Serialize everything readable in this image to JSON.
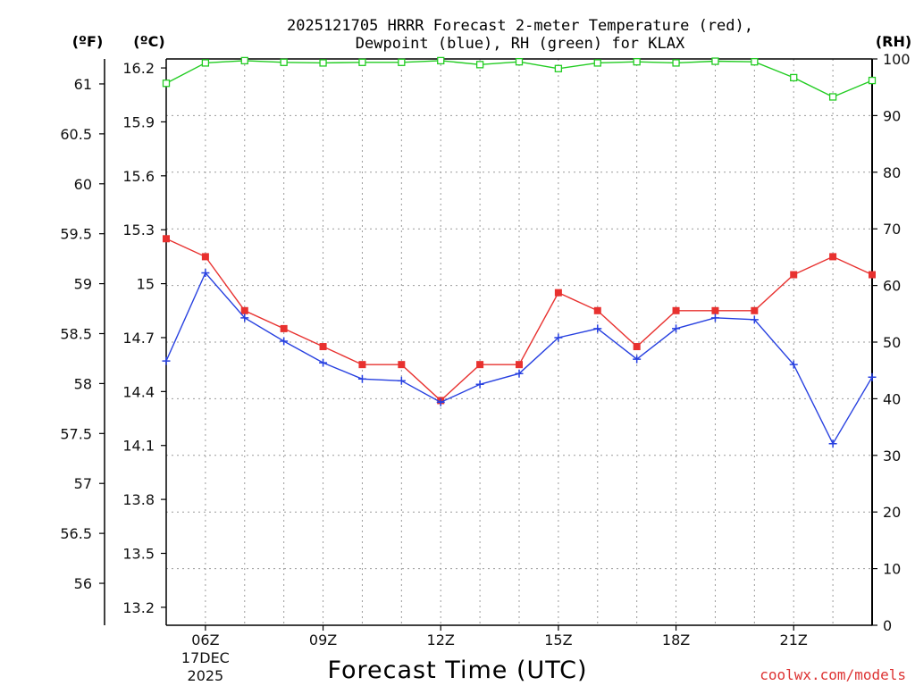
{
  "chart_data": {
    "type": "line",
    "title_lines": [
      "2025121705 HRRR Forecast 2-meter Temperature (red),",
      "Dewpoint (blue), RH (green) for KLAX"
    ],
    "xlabel": "Forecast Time (UTC)",
    "credit": "coolwx.com/models",
    "x_range": [
      5,
      23
    ],
    "x_ticks": [
      {
        "x": 6,
        "label": "06Z",
        "sub": [
          "17DEC",
          "2025"
        ]
      },
      {
        "x": 9,
        "label": "09Z",
        "sub": []
      },
      {
        "x": 12,
        "label": "12Z",
        "sub": []
      },
      {
        "x": 15,
        "label": "15Z",
        "sub": []
      },
      {
        "x": 18,
        "label": "18Z",
        "sub": []
      },
      {
        "x": 21,
        "label": "21Z",
        "sub": []
      }
    ],
    "axes": {
      "fahrenheit": {
        "unit_label": "(ºF)",
        "ticks": [
          "61",
          "60.5",
          "60",
          "59.5",
          "59",
          "58.5",
          "58",
          "57.5",
          "57",
          "56.5",
          "56"
        ]
      },
      "celsius": {
        "unit_label": "(ºC)",
        "range": [
          13.1,
          16.25
        ],
        "ticks": [
          "16.2",
          "15.9",
          "15.6",
          "15.3",
          "15",
          "14.7",
          "14.4",
          "14.1",
          "13.8",
          "13.5",
          "13.2"
        ]
      },
      "rh": {
        "unit_label": "(RH)",
        "range": [
          0,
          100
        ],
        "ticks": [
          "100",
          "90",
          "80",
          "70",
          "60",
          "50",
          "40",
          "30",
          "20",
          "10",
          "0"
        ]
      }
    },
    "hours": [
      5,
      6,
      7,
      8,
      9,
      10,
      11,
      12,
      13,
      14,
      15,
      16,
      17,
      18,
      19,
      20,
      21,
      22,
      23
    ],
    "series": [
      {
        "name": "Temperature",
        "color": "#e8312f",
        "axis": "celsius",
        "marker": "square-filled",
        "values": [
          15.25,
          15.15,
          14.85,
          14.75,
          14.65,
          14.55,
          14.55,
          14.35,
          14.55,
          14.55,
          14.95,
          14.85,
          14.65,
          14.85,
          14.85,
          14.85,
          15.05,
          15.15,
          15.05
        ]
      },
      {
        "name": "Dewpoint",
        "color": "#2740e0",
        "axis": "celsius",
        "marker": "plus",
        "values": [
          14.57,
          15.06,
          14.81,
          14.68,
          14.56,
          14.47,
          14.46,
          14.34,
          14.44,
          14.5,
          14.7,
          14.75,
          14.58,
          14.75,
          14.81,
          14.8,
          14.55,
          14.11,
          14.48
        ]
      },
      {
        "name": "RH",
        "color": "#22cc22",
        "axis": "rh",
        "marker": "square-open",
        "values": [
          95.7,
          99.3,
          99.7,
          99.4,
          99.3,
          99.4,
          99.4,
          99.7,
          99.0,
          99.5,
          98.3,
          99.3,
          99.5,
          99.3,
          99.6,
          99.5,
          96.7,
          93.3,
          96.2
        ]
      }
    ]
  }
}
